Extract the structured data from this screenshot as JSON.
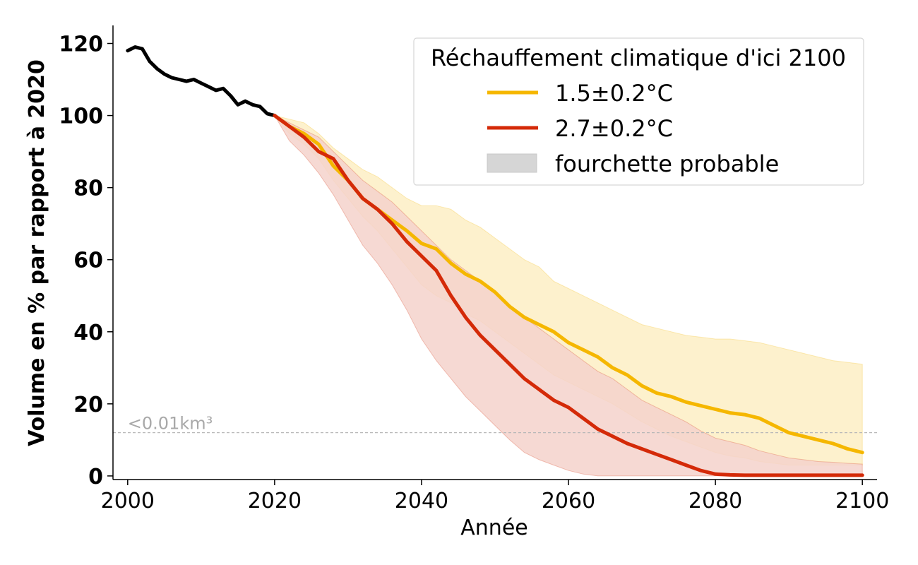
{
  "chart_data": {
    "type": "line",
    "xlabel": "Année",
    "ylabel": "Volume en % par rapport à 2020",
    "xlim": [
      1998,
      2102
    ],
    "ylim": [
      -1,
      125
    ],
    "xticks": [
      2000,
      2020,
      2040,
      2060,
      2080,
      2100
    ],
    "yticks": [
      0,
      20,
      40,
      60,
      80,
      100,
      120
    ],
    "grid": false,
    "legend": {
      "title": "Réchauffement climatique d'ici 2100",
      "placement": "top-right",
      "entries": [
        "1.5±0.2°C",
        "2.7±0.2°C",
        "fourchette probable"
      ],
      "band_color": "#d6d6d6"
    },
    "threshold": {
      "y": 12,
      "label": "<0.01km³",
      "color": "#b8b8b8"
    },
    "historical": {
      "color": "#000000",
      "x": [
        2000,
        2001,
        2002,
        2003,
        2004,
        2005,
        2006,
        2007,
        2008,
        2009,
        2010,
        2011,
        2012,
        2013,
        2014,
        2015,
        2016,
        2017,
        2018,
        2019,
        2020
      ],
      "y": [
        118,
        119,
        118.5,
        115,
        113,
        111.5,
        110.5,
        110,
        109.5,
        110,
        109,
        108,
        107,
        107.5,
        105.5,
        103,
        104,
        103,
        102.5,
        100.5,
        100
      ]
    },
    "series": [
      {
        "name": "1.5±0.2°C",
        "color": "#f5b700",
        "band_color": "#fdeec4",
        "x": [
          2020,
          2022,
          2024,
          2026,
          2028,
          2030,
          2032,
          2034,
          2036,
          2038,
          2040,
          2042,
          2044,
          2046,
          2048,
          2050,
          2052,
          2054,
          2056,
          2058,
          2060,
          2062,
          2064,
          2066,
          2068,
          2070,
          2072,
          2074,
          2076,
          2078,
          2080,
          2082,
          2084,
          2086,
          2088,
          2090,
          2092,
          2094,
          2096,
          2098,
          2100
        ],
        "y": [
          100,
          97,
          95,
          92,
          86,
          82,
          77,
          74,
          71,
          68,
          64.5,
          63,
          59,
          56,
          54,
          51,
          47,
          44,
          42,
          40,
          37,
          35,
          33,
          30,
          28,
          25,
          23,
          22,
          20.5,
          19.5,
          18.5,
          17.5,
          17,
          16,
          14,
          12,
          11,
          10,
          9,
          7.5,
          6.5
        ],
        "lower": [
          100,
          95,
          92,
          88,
          82,
          77,
          72,
          68,
          63,
          58,
          53,
          50,
          48,
          45,
          43,
          40,
          37,
          34,
          31,
          28,
          26,
          24,
          22,
          20,
          17.5,
          15,
          13,
          11,
          9.5,
          8,
          6.5,
          5.5,
          5,
          4,
          3.5,
          3,
          3,
          3,
          3,
          3,
          3
        ],
        "upper": [
          100,
          99,
          98,
          95,
          91,
          88,
          85,
          83,
          80,
          77,
          75,
          75,
          74,
          71,
          69,
          66,
          63,
          60,
          58,
          54,
          52,
          50,
          48,
          46,
          44,
          42,
          41,
          40,
          39,
          38.5,
          38,
          38,
          37.5,
          37,
          36,
          35,
          34,
          33,
          32,
          31.5,
          31
        ]
      },
      {
        "name": "2.7±0.2°C",
        "color": "#d42a08",
        "band_color": "#f5d2cb",
        "x": [
          2020,
          2022,
          2024,
          2026,
          2028,
          2030,
          2032,
          2034,
          2036,
          2038,
          2040,
          2042,
          2044,
          2046,
          2048,
          2050,
          2052,
          2054,
          2056,
          2058,
          2060,
          2062,
          2064,
          2066,
          2068,
          2070,
          2072,
          2074,
          2076,
          2078,
          2080,
          2082,
          2084,
          2086,
          2088,
          2090,
          2092,
          2094,
          2096,
          2098,
          2100
        ],
        "y": [
          100,
          97,
          94,
          90,
          88,
          82,
          77,
          74,
          70,
          65,
          61,
          57,
          50,
          44,
          39,
          35,
          31,
          27,
          24,
          21,
          19,
          16,
          13,
          11,
          9,
          7.5,
          6,
          4.5,
          3,
          1.5,
          0.5,
          0.3,
          0.2,
          0.2,
          0.2,
          0.2,
          0.2,
          0.2,
          0.2,
          0.2,
          0.2
        ],
        "lower": [
          100,
          93,
          89,
          84,
          78,
          71,
          64,
          59,
          53,
          46,
          38,
          32,
          27,
          22,
          18,
          14,
          10,
          6.5,
          4.5,
          3,
          1.5,
          0.5,
          0,
          0,
          0,
          0,
          0,
          0,
          0,
          0,
          0,
          0,
          0,
          0,
          0,
          0,
          0,
          0,
          0,
          0,
          0
        ],
        "upper": [
          100,
          98,
          96,
          94,
          90,
          86,
          82,
          79,
          76,
          72,
          68,
          64,
          60,
          57,
          54,
          51,
          47,
          44,
          41,
          38,
          35,
          32,
          29,
          27,
          24,
          21,
          19,
          17,
          15,
          12.5,
          10.5,
          9.5,
          8.5,
          7,
          6,
          5,
          4.5,
          4,
          3.8,
          3.5,
          3.3
        ]
      }
    ]
  }
}
